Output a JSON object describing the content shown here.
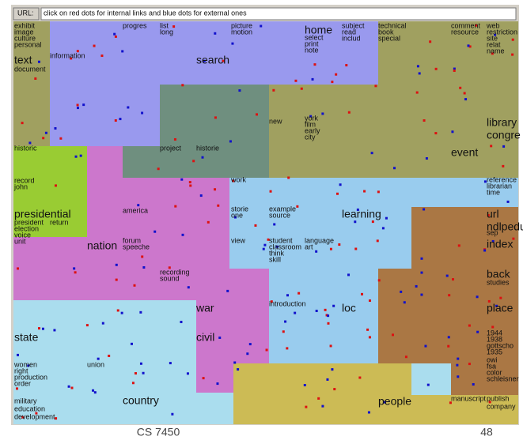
{
  "url_bar": {
    "label": "URL:",
    "text": "click on red dots for internal links and blue dots for external ones"
  },
  "map": {
    "labels": [
      "text",
      "search",
      "home",
      "library",
      "congre",
      "event",
      "presidential",
      "nation",
      "learning",
      "url",
      "ndlpedu",
      "index",
      "back",
      "war",
      "loc",
      "place",
      "civil",
      "state",
      "country",
      "people",
      "exhibit",
      "image",
      "culture",
      "personal",
      "document",
      "information",
      "progres",
      "list",
      "long",
      "picture",
      "motion",
      "select",
      "print",
      "note",
      "subject",
      "read",
      "includ",
      "technical",
      "book",
      "special",
      "comment",
      "resource",
      "web",
      "restriction",
      "site",
      "relat",
      "name",
      "new",
      "york",
      "film",
      "early",
      "city",
      "historic",
      "project",
      "historie",
      "record",
      "john",
      "work",
      "reference",
      "librarian",
      "time",
      "america",
      "storie",
      "one",
      "example",
      "source",
      "return",
      "president",
      "election",
      "voice",
      "unit",
      "forum",
      "speeche",
      "view",
      "student",
      "classroom",
      "think",
      "skill",
      "language",
      "art",
      "sep",
      "studies",
      "recording",
      "sound",
      "introduction",
      "women",
      "right",
      "production",
      "order",
      "union",
      "military",
      "education",
      "development",
      "manuscript",
      "publish",
      "company",
      "1944",
      "1938",
      "gottscho",
      "1935",
      "owi",
      "fsa",
      "color",
      "schleisner"
    ]
  },
  "footer": {
    "course": "CS 7450",
    "page": "48"
  }
}
